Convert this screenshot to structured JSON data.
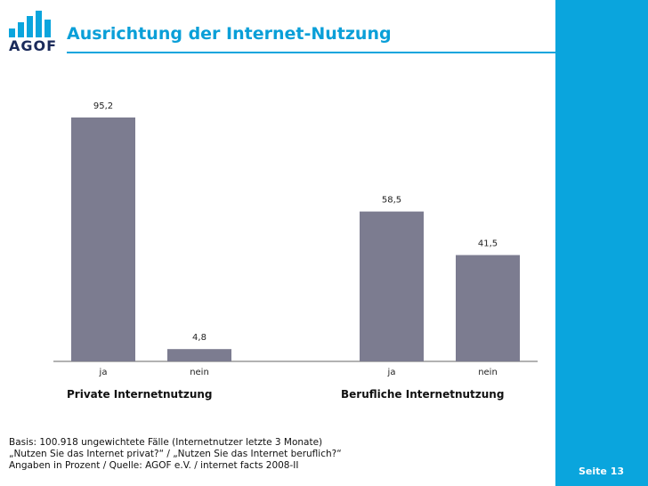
{
  "header": {
    "logo_text": "AGOF",
    "title": "Ausrichtung der Internet-Nutzung"
  },
  "chart_data": {
    "type": "bar",
    "title": "Ausrichtung der Internet-Nutzung",
    "groups": [
      {
        "name": "Private Internetnutzung",
        "categories": [
          "ja",
          "nein"
        ],
        "values": [
          95.2,
          4.8
        ],
        "labels": [
          "95,2",
          "4,8"
        ]
      },
      {
        "name": "Berufliche Internetnutzung",
        "categories": [
          "ja",
          "nein"
        ],
        "values": [
          58.5,
          41.5
        ],
        "labels": [
          "58,5",
          "41,5"
        ]
      }
    ],
    "ylim": [
      0,
      100
    ],
    "unit": "Prozent",
    "bar_color": "#7c7c90",
    "legend": "none",
    "grid": false
  },
  "footer": {
    "basis": "Basis: 100.918 ungewichtete Fälle (Internetnutzer letzte 3 Monate)",
    "question": "„Nutzen Sie das Internet privat?“ / „Nutzen Sie das Internet beruflich?“",
    "source": "Angaben in Prozent / Quelle: AGOF e.V. / internet facts 2008-II",
    "page": "Seite 13"
  },
  "colors": {
    "accent": "#0aa5dd",
    "bar": "#7c7c90"
  }
}
